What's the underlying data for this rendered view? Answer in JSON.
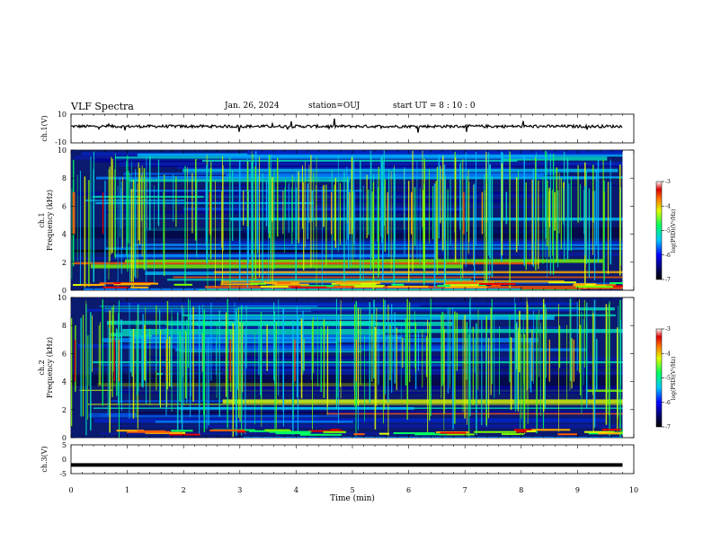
{
  "header": {
    "title": "VLF Spectra",
    "date": "Jan. 26, 2024",
    "station": "station=OUJ",
    "start": "start UT = 8 : 10 : 0"
  },
  "chart_data": [
    {
      "type": "line",
      "panel": "ch1-waveform",
      "ylabel": "ch.1(V)",
      "yticks": [
        "10",
        "-10"
      ],
      "ylim": [
        -10,
        10
      ],
      "xlim": [
        0,
        10
      ],
      "trace_level": 1.5,
      "trace_range_min": [
        0,
        9.8
      ]
    },
    {
      "type": "heatmap",
      "panel": "ch1-spectrogram",
      "ylabel": "Frequency (kHz)",
      "channel_label": "ch.1",
      "yticks": [
        "0",
        "2",
        "4",
        "6",
        "8",
        "10"
      ],
      "ylim": [
        0,
        10
      ],
      "xlim": [
        0,
        9.8
      ],
      "colorbar": {
        "label": "log(PSD)(V²/Hz)",
        "ticks": [
          "-3",
          "-4",
          "-5",
          "-6",
          "-7"
        ],
        "range": [
          -7,
          -3
        ]
      }
    },
    {
      "type": "heatmap",
      "panel": "ch2-spectrogram",
      "ylabel": "Frequency (kHz)",
      "channel_label": "ch.2",
      "yticks": [
        "0",
        "2",
        "4",
        "6",
        "8",
        "10"
      ],
      "ylim": [
        0,
        10
      ],
      "xlim": [
        0,
        9.8
      ],
      "colorbar": {
        "label": "log(PSD)(V²/Hz)",
        "ticks": [
          "-3",
          "-4",
          "-5",
          "-6",
          "-7"
        ],
        "range": [
          -7,
          -3
        ]
      }
    },
    {
      "type": "line",
      "panel": "ch3-waveform",
      "ylabel": "ch.3(V)",
      "yticks": [
        "5",
        "0",
        "-5"
      ],
      "ylim": [
        -5,
        5
      ],
      "xlim": [
        0,
        10
      ],
      "trace_level": -2,
      "trace_range_min": [
        0,
        9.8
      ]
    }
  ],
  "xaxis": {
    "label": "Time (min)",
    "ticks": [
      "0",
      "1",
      "2",
      "3",
      "4",
      "5",
      "6",
      "7",
      "8",
      "9",
      "10"
    ]
  },
  "colors": {
    "trace": "#000000",
    "spectrogram_background": "#0a1a6e"
  }
}
